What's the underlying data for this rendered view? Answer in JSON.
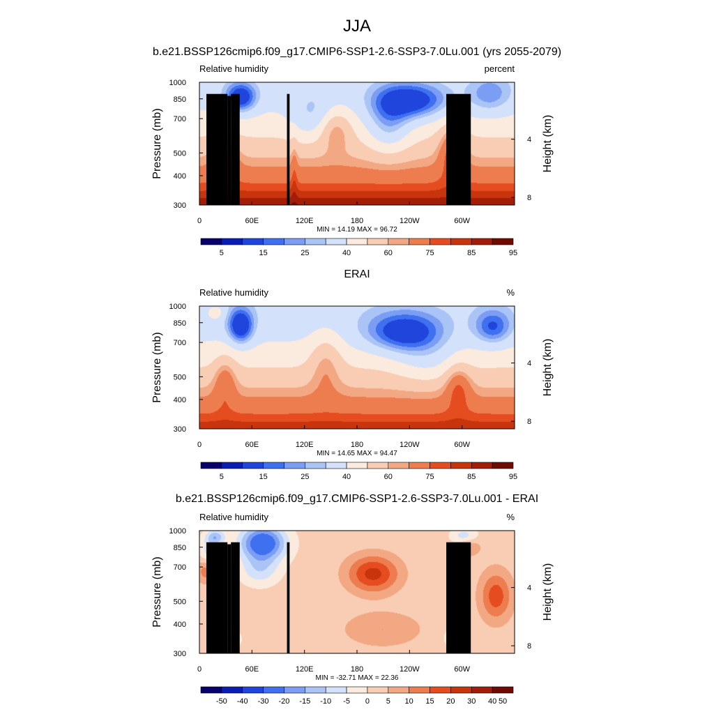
{
  "figure": {
    "title": "JJA",
    "case_subtitle": "b.e21.BSSP126cmip6.f09_g17.CMIP6-SSP1-2.6-SSP3-7.0Lu.001 (yrs 2055-2079)"
  },
  "chart_data": [
    {
      "type": "heatmap",
      "title": "",
      "left_label": "Relative humidity",
      "units": "percent",
      "ylabel": "Pressure (mb)",
      "y2label": "Height (km)",
      "x_ticks": [
        "0",
        "60E",
        "120E",
        "180",
        "120W",
        "60W"
      ],
      "x_tick_lon": [
        0,
        60,
        120,
        180,
        240,
        300
      ],
      "xlim_lon": [
        0,
        360
      ],
      "y_ticks": [
        "300",
        "400",
        "500",
        "700",
        "850",
        "1000"
      ],
      "y_tick_values": [
        300,
        400,
        500,
        700,
        850,
        1000
      ],
      "ylim": [
        1000,
        300
      ],
      "y_scale": "log",
      "y2_ticks": [
        "8",
        "4"
      ],
      "y2_tick_values": [
        8,
        4
      ],
      "stats": "MIN =  14.19  MAX =  96.72",
      "min": 14.19,
      "max": 96.72,
      "colorbar": {
        "labels": [
          "5",
          "15",
          "25",
          "40",
          "60",
          "75",
          "85",
          "95"
        ],
        "levels": [
          5,
          10,
          15,
          20,
          25,
          30,
          40,
          50,
          60,
          65,
          75,
          80,
          85,
          90,
          95
        ]
      },
      "masked": true
    },
    {
      "type": "heatmap",
      "title": "ERAI",
      "left_label": "Relative humidity",
      "units": "%",
      "ylabel": "Pressure (mb)",
      "y2label": "Height (km)",
      "x_ticks": [
        "0",
        "60E",
        "120E",
        "180",
        "120W",
        "60W"
      ],
      "x_tick_lon": [
        0,
        60,
        120,
        180,
        240,
        300
      ],
      "xlim_lon": [
        0,
        360
      ],
      "y_ticks": [
        "300",
        "400",
        "500",
        "700",
        "850",
        "1000"
      ],
      "y_tick_values": [
        300,
        400,
        500,
        700,
        850,
        1000
      ],
      "ylim": [
        1000,
        300
      ],
      "y_scale": "log",
      "y2_ticks": [
        "8",
        "4"
      ],
      "y2_tick_values": [
        8,
        4
      ],
      "stats": "MIN =  14.65  MAX =  94.47",
      "min": 14.65,
      "max": 94.47,
      "colorbar": {
        "labels": [
          "5",
          "15",
          "25",
          "40",
          "60",
          "75",
          "85",
          "95"
        ],
        "levels": [
          5,
          10,
          15,
          20,
          25,
          30,
          40,
          50,
          60,
          65,
          75,
          80,
          85,
          90,
          95
        ]
      },
      "masked": false
    },
    {
      "type": "heatmap",
      "title": "b.e21.BSSP126cmip6.f09_g17.CMIP6-SSP1-2.6-SSP3-7.0Lu.001 - ERAI",
      "left_label": "Relative humidity",
      "units": "%",
      "ylabel": "Pressure (mb)",
      "y2label": "Height (km)",
      "x_ticks": [
        "0",
        "60E",
        "120E",
        "180",
        "120W",
        "60W"
      ],
      "x_tick_lon": [
        0,
        60,
        120,
        180,
        240,
        300
      ],
      "xlim_lon": [
        0,
        360
      ],
      "y_ticks": [
        "300",
        "400",
        "500",
        "700",
        "850",
        "1000"
      ],
      "y_tick_values": [
        300,
        400,
        500,
        700,
        850,
        1000
      ],
      "ylim": [
        1000,
        300
      ],
      "y_scale": "log",
      "y2_ticks": [
        "8",
        "4"
      ],
      "y2_tick_values": [
        8,
        4
      ],
      "stats": "MIN = -32.71  MAX =  22.36",
      "min": -32.71,
      "max": 22.36,
      "colorbar": {
        "labels": [
          "-50",
          "-40",
          "-30",
          "-20",
          "-15",
          "-10",
          "-5",
          "0",
          "5",
          "10",
          "15",
          "20",
          "30",
          "40",
          "50"
        ],
        "levels": [
          -50,
          -40,
          -30,
          -20,
          -15,
          -10,
          -5,
          0,
          5,
          10,
          15,
          20,
          30,
          40,
          50
        ]
      },
      "masked": true
    }
  ],
  "colors": {
    "palette": [
      "#08006b",
      "#0a1eb4",
      "#1f45dc",
      "#3f70f0",
      "#7b9ef4",
      "#abc4f6",
      "#d3e2fa",
      "#fbeade",
      "#f9cdb4",
      "#f3a884",
      "#ed7d4f",
      "#e54d21",
      "#c8340c",
      "#a31e08",
      "#700a02"
    ],
    "topography": "#000000"
  }
}
